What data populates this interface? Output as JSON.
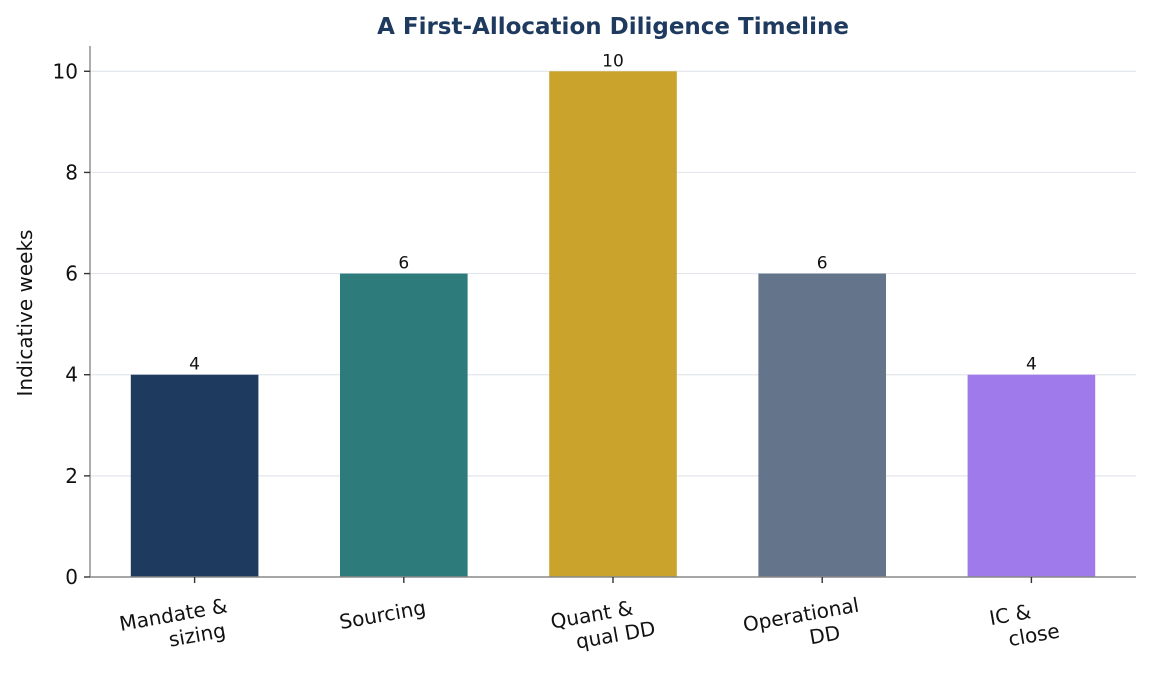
{
  "chart_data": {
    "type": "bar",
    "title": "A First-Allocation Diligence Timeline",
    "xlabel": "",
    "ylabel": "Indicative weeks",
    "categories": [
      [
        "Mandate &",
        "sizing"
      ],
      [
        "Sourcing"
      ],
      [
        "Quant &",
        "qual DD"
      ],
      [
        "Operational",
        "DD"
      ],
      [
        "IC &",
        "close"
      ]
    ],
    "values": [
      4,
      6,
      10,
      6,
      4
    ],
    "colors": [
      "#1f3a5f",
      "#2e7b7b",
      "#c9a32b",
      "#64748b",
      "#9f7aea"
    ],
    "ylim": [
      0,
      10.5
    ],
    "yticks": [
      0,
      2,
      4,
      6,
      8,
      10
    ],
    "grid": true,
    "legend": "none"
  }
}
